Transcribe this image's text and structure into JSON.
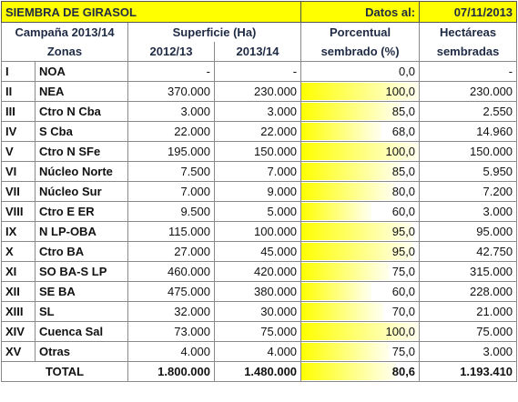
{
  "header": {
    "title": "SIEMBRA DE GIRASOL",
    "date_label": "Datos al:",
    "date": "07/11/2013"
  },
  "table": {
    "columns": {
      "campaign": "Campaña 2013/14",
      "zones": "Zonas",
      "area": "Superficie (Ha)",
      "year1": "2012/13",
      "year2": "2013/14",
      "pct_line1": "Porcentual",
      "pct_line2": "sembrado (%)",
      "ha_line1": "Hectáreas",
      "ha_line2": "sembradas"
    },
    "rows": [
      [
        "I",
        "NOA",
        "-",
        "-",
        "0,0",
        "-"
      ],
      [
        "II",
        "NEA",
        "370.000",
        "230.000",
        "100,0",
        "230.000"
      ],
      [
        "III",
        "Ctro N Cba",
        "3.000",
        "3.000",
        "85,0",
        "2.550"
      ],
      [
        "IV",
        "S Cba",
        "22.000",
        "22.000",
        "68,0",
        "14.960"
      ],
      [
        "V",
        "Ctro N SFe",
        "195.000",
        "150.000",
        "100,0",
        "150.000"
      ],
      [
        "VI",
        "Núcleo Norte",
        "7.500",
        "7.000",
        "85,0",
        "5.950"
      ],
      [
        "VII",
        "Núcleo Sur",
        "7.000",
        "9.000",
        "80,0",
        "7.200"
      ],
      [
        "VIII",
        "Ctro E ER",
        "9.500",
        "5.000",
        "60,0",
        "3.000"
      ],
      [
        "IX",
        "N LP-OBA",
        "115.000",
        "100.000",
        "95,0",
        "95.000"
      ],
      [
        "X",
        "Ctro BA",
        "27.000",
        "45.000",
        "95,0",
        "42.750"
      ],
      [
        "XI",
        "SO BA-S LP",
        "460.000",
        "420.000",
        "75,0",
        "315.000"
      ],
      [
        "XII",
        "SE BA",
        "475.000",
        "380.000",
        "60,0",
        "228.000"
      ],
      [
        "XIII",
        "SL",
        "32.000",
        "30.000",
        "70,0",
        "21.000"
      ],
      [
        "XIV",
        "Cuenca Sal",
        "73.000",
        "75.000",
        "100,0",
        "75.000"
      ],
      [
        "XV",
        "Otras",
        "4.000",
        "4.000",
        "75,0",
        "3.000"
      ]
    ],
    "total": [
      "TOTAL",
      "1.800.000",
      "1.480.000",
      "80,6",
      "1.193.410"
    ]
  }
}
